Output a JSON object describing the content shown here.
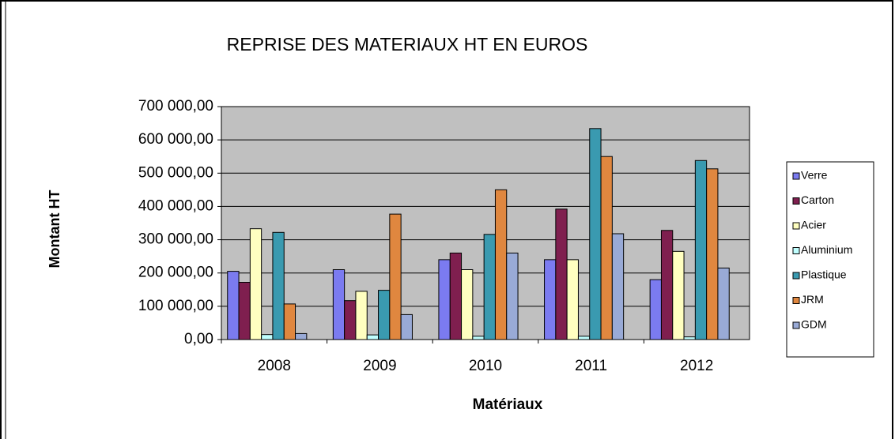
{
  "chart_data": {
    "type": "bar",
    "title": "REPRISE DES MATERIAUX HT EN EUROS",
    "x_label": "Matériaux",
    "y_label": "Montant HT",
    "categories": [
      "2008",
      "2009",
      "2010",
      "2011",
      "2012"
    ],
    "series": [
      {
        "name": "Verre",
        "color": "#7b7bf0",
        "values": [
          205000,
          210000,
          240000,
          240000,
          180000
        ]
      },
      {
        "name": "Carton",
        "color": "#7f1f4f",
        "values": [
          172000,
          117000,
          260000,
          392000,
          328000
        ]
      },
      {
        "name": "Acier",
        "color": "#ffffc0",
        "values": [
          333000,
          145000,
          210000,
          240000,
          265000
        ]
      },
      {
        "name": "Aluminium",
        "color": "#c0ffff",
        "values": [
          15000,
          14000,
          10000,
          10000,
          8000
        ]
      },
      {
        "name": "Plastique",
        "color": "#3a9ab0",
        "values": [
          322000,
          148000,
          316000,
          634000,
          538000
        ]
      },
      {
        "name": "JRM",
        "color": "#e0873f",
        "values": [
          107000,
          377000,
          450000,
          550000,
          513000
        ]
      },
      {
        "name": "GDM",
        "color": "#99aad6",
        "values": [
          18000,
          75000,
          260000,
          318000,
          215000
        ]
      }
    ],
    "ylim": [
      0,
      700000
    ],
    "yticks": [
      {
        "value": 0,
        "label": "0,00"
      },
      {
        "value": 100000,
        "label": "100 000,00"
      },
      {
        "value": 200000,
        "label": "200 000,00"
      },
      {
        "value": 300000,
        "label": "300 000,00"
      },
      {
        "value": 400000,
        "label": "400 000,00"
      },
      {
        "value": 500000,
        "label": "500 000,00"
      },
      {
        "value": 600000,
        "label": "600 000,00"
      },
      {
        "value": 700000,
        "label": "700 000,00"
      }
    ],
    "grid": true,
    "plot_background": "#c0c0c0",
    "legend": "right"
  }
}
